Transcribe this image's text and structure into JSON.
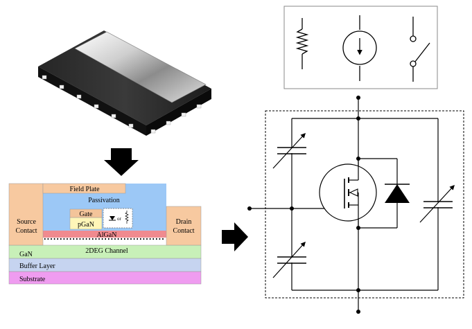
{
  "cross_section": {
    "field_plate": "Field Plate",
    "passivation": "Passivation",
    "gate": "Gate",
    "pgan": "pGaN",
    "or_text": "or",
    "source_line1": "Source",
    "source_line2": "Contact",
    "drain_line1": "Drain",
    "drain_line2": "Contact",
    "algan": "AlGaN",
    "channel": "2DEG Channel",
    "gan": "GaN",
    "buffer": "Buffer Layer",
    "substrate": "Substrate"
  },
  "colors": {
    "contact": "#f7c9a0",
    "passivation": "#9cc8f6",
    "gate": "#f3c49a",
    "pgan": "#fff6b8",
    "algan": "#f08a8f",
    "gan": "#c8f0b8",
    "buffer": "#c6d4f0",
    "substrate": "#ef9cf0"
  }
}
